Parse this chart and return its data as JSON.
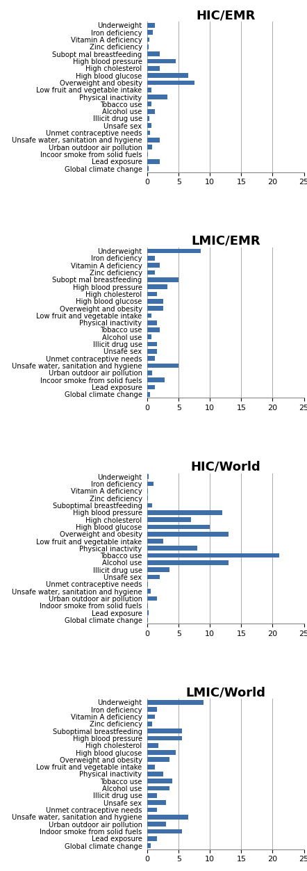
{
  "labels": [
    "Underweight",
    "Iron deficiency",
    "Vitamin A deficiency",
    "Zinc deficiency",
    "Subopt mal breastfeeding",
    "High blood pressure",
    "High cholesterol",
    "High blood glucose",
    "Overweight and obesity",
    "Low fruit and vegetable intake",
    "Physical inactivity",
    "Tobacco use",
    "Alcohol use",
    "Illicit drug use",
    "Unsafe sex",
    "Unmet contraceptive needs",
    "Unsafe water, sanitation and hygiene",
    "Urban outdoor air pollution",
    "Incoor smoke from solid fuels",
    "Lead exposure",
    "Global climate change"
  ],
  "labels_world": [
    "Underweight",
    "Iron deficiency",
    "Vitamin A deficiency",
    "Zinc deficiency",
    "Suboptimal breastfeeding",
    "High blood pressure",
    "High cholesterol",
    "High blood glucose",
    "Overweight and obesity",
    "Low fruit and vegetable intake",
    "Physical inactivity",
    "Tobacco use",
    "Alcohol use",
    "Illicit drug use",
    "Unsafe sex",
    "Unmet contraceptive needs",
    "Unsafe water, sanitation and hygiene",
    "Urban outdoor air pollution",
    "Indoor smoke from solid fuels",
    "Lead exposure",
    "Global climate change"
  ],
  "charts": [
    {
      "title": "HIC/EMR",
      "values": [
        1.2,
        0.9,
        0.3,
        0.2,
        2.0,
        4.5,
        2.0,
        6.5,
        7.5,
        0.7,
        3.2,
        0.7,
        1.2,
        0.3,
        0.7,
        0.4,
        2.0,
        0.8,
        0.1,
        2.0,
        0.2
      ],
      "use_world_labels": false
    },
    {
      "title": "LMIC/EMR",
      "values": [
        8.5,
        1.2,
        2.0,
        1.2,
        5.0,
        3.2,
        1.5,
        2.5,
        2.5,
        0.7,
        1.5,
        2.0,
        0.7,
        1.5,
        1.5,
        1.2,
        5.0,
        0.8,
        2.8,
        1.2,
        0.4
      ],
      "use_world_labels": false
    },
    {
      "title": "HIC/World",
      "values": [
        0.2,
        1.0,
        0.05,
        0.05,
        0.8,
        12.0,
        7.0,
        10.0,
        13.0,
        2.5,
        8.0,
        21.0,
        13.0,
        3.5,
        2.0,
        0.1,
        0.5,
        1.5,
        0.1,
        0.2,
        0.05
      ],
      "use_world_labels": true
    },
    {
      "title": "LMIC/World",
      "values": [
        9.0,
        1.5,
        1.2,
        0.8,
        5.5,
        5.5,
        1.8,
        4.5,
        3.5,
        1.2,
        2.5,
        4.0,
        3.5,
        1.5,
        3.0,
        1.5,
        6.5,
        3.0,
        5.5,
        1.5,
        0.5
      ],
      "use_world_labels": true
    }
  ],
  "bar_color": "#3E6FA8",
  "xlim": [
    0,
    25
  ],
  "xticks": [
    0,
    5,
    10,
    15,
    20,
    25
  ],
  "background_color": "#ffffff",
  "title_fontsize": 13,
  "label_fontsize": 7.2,
  "tick_fontsize": 8
}
